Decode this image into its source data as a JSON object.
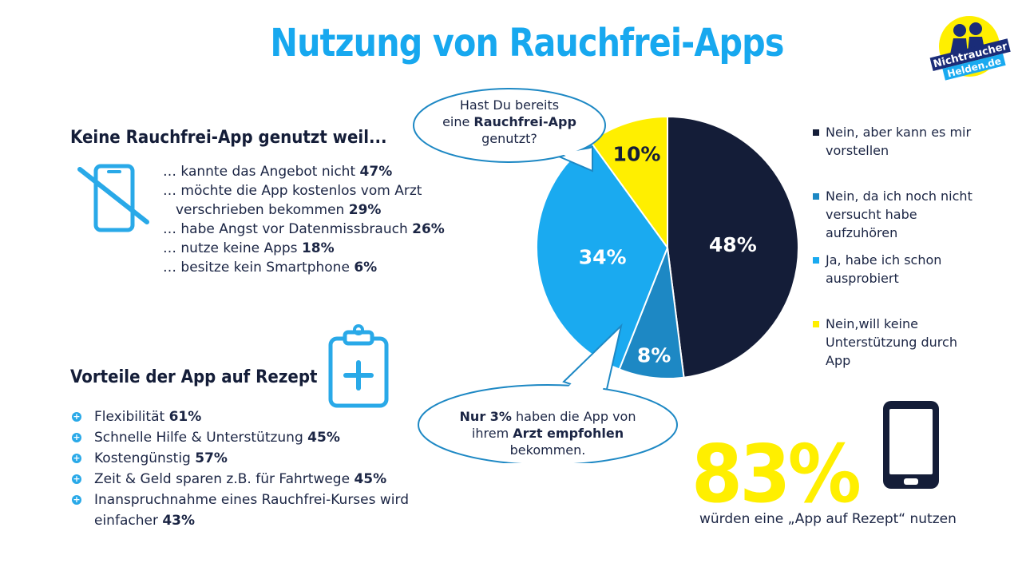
{
  "title": "Nutzung von Rauchfrei-Apps",
  "logo_text": "Nichtraucher Helden.de",
  "reasons": {
    "heading": "Keine Rauchfrei-App genutzt weil...",
    "items": [
      {
        "text": "… kannte das Angebot nicht",
        "pct": "47%"
      },
      {
        "text": "… möchte die App kostenlos vom Arzt",
        "pct": ""
      },
      {
        "text": "verschrieben bekommen",
        "pct": "29%"
      },
      {
        "text": "… habe Angst vor Datenmissbrauch",
        "pct": "26%"
      },
      {
        "text": "… nutze keine Apps",
        "pct": "18%"
      },
      {
        "text": "… besitze kein Smartphone",
        "pct": "6%"
      }
    ]
  },
  "benefits": {
    "heading": "Vorteile der App auf Rezept",
    "items": [
      {
        "lines": [
          "Flexibilität"
        ],
        "pct": "61%"
      },
      {
        "lines": [
          "Schnelle Hilfe & Unterstützung"
        ],
        "pct": "45%"
      },
      {
        "lines": [
          "Kostengünstig"
        ],
        "pct": "57%"
      },
      {
        "lines": [
          "Zeit & Geld sparen z.B. für Fahrtwege"
        ],
        "pct": "45%"
      },
      {
        "lines": [
          "Inanspruchnahme eines Rauchfrei-Kurses wird",
          "einfacher"
        ],
        "pct": "43%"
      }
    ]
  },
  "question_bubble": {
    "line1": "Hast Du bereits",
    "line2_pre": "eine ",
    "line2_bold": "Rauchfrei-App",
    "line3": "genutzt?"
  },
  "doctor_bubble": {
    "bold1": "Nur 3%",
    "text1": " haben die App von",
    "text2": "ihrem ",
    "bold2": "Arzt empfohlen",
    "text3": "bekommen."
  },
  "chart_data": {
    "type": "pie",
    "title": "Hast Du bereits eine Rauchfrei-App genutzt?",
    "start_angle_deg": 0,
    "direction": "clockwise",
    "slices": [
      {
        "label": "Nein, aber kann es mir vorstellen",
        "value": 48,
        "value_label": "48%",
        "color": "#141d38"
      },
      {
        "label": "Nein, da ich noch nicht versucht habe aufzuhören",
        "value": 8,
        "value_label": "8%",
        "color": "#1d88c4"
      },
      {
        "label": "Ja, habe ich schon ausprobiert",
        "value": 34,
        "value_label": "34%",
        "color": "#1aaaf0"
      },
      {
        "label": "Nein,will keine Unterstützung durch App",
        "value": 10,
        "value_label": "10%",
        "color": "#ffef00"
      }
    ],
    "legend_position": "right"
  },
  "legend": [
    {
      "lines": [
        "Nein, aber kann es mir",
        "vorstellen"
      ],
      "color": "#141d38"
    },
    {
      "lines": [
        "Nein, da ich noch nicht",
        "versucht habe",
        "aufzuhören"
      ],
      "color": "#1d88c4"
    },
    {
      "lines": [
        "Ja, habe ich schon",
        "ausprobiert"
      ],
      "color": "#1aaaf0"
    },
    {
      "lines": [
        "Nein,will keine",
        "Unterstützung durch",
        "App"
      ],
      "color": "#ffef00"
    }
  ],
  "highlight": {
    "value": "83%",
    "caption": "würden eine „App auf Rezept“ nutzen"
  },
  "icons": {
    "no_phone": "no-smartphone-icon",
    "clipboard": "medical-clipboard-icon",
    "phone": "smartphone-icon"
  }
}
